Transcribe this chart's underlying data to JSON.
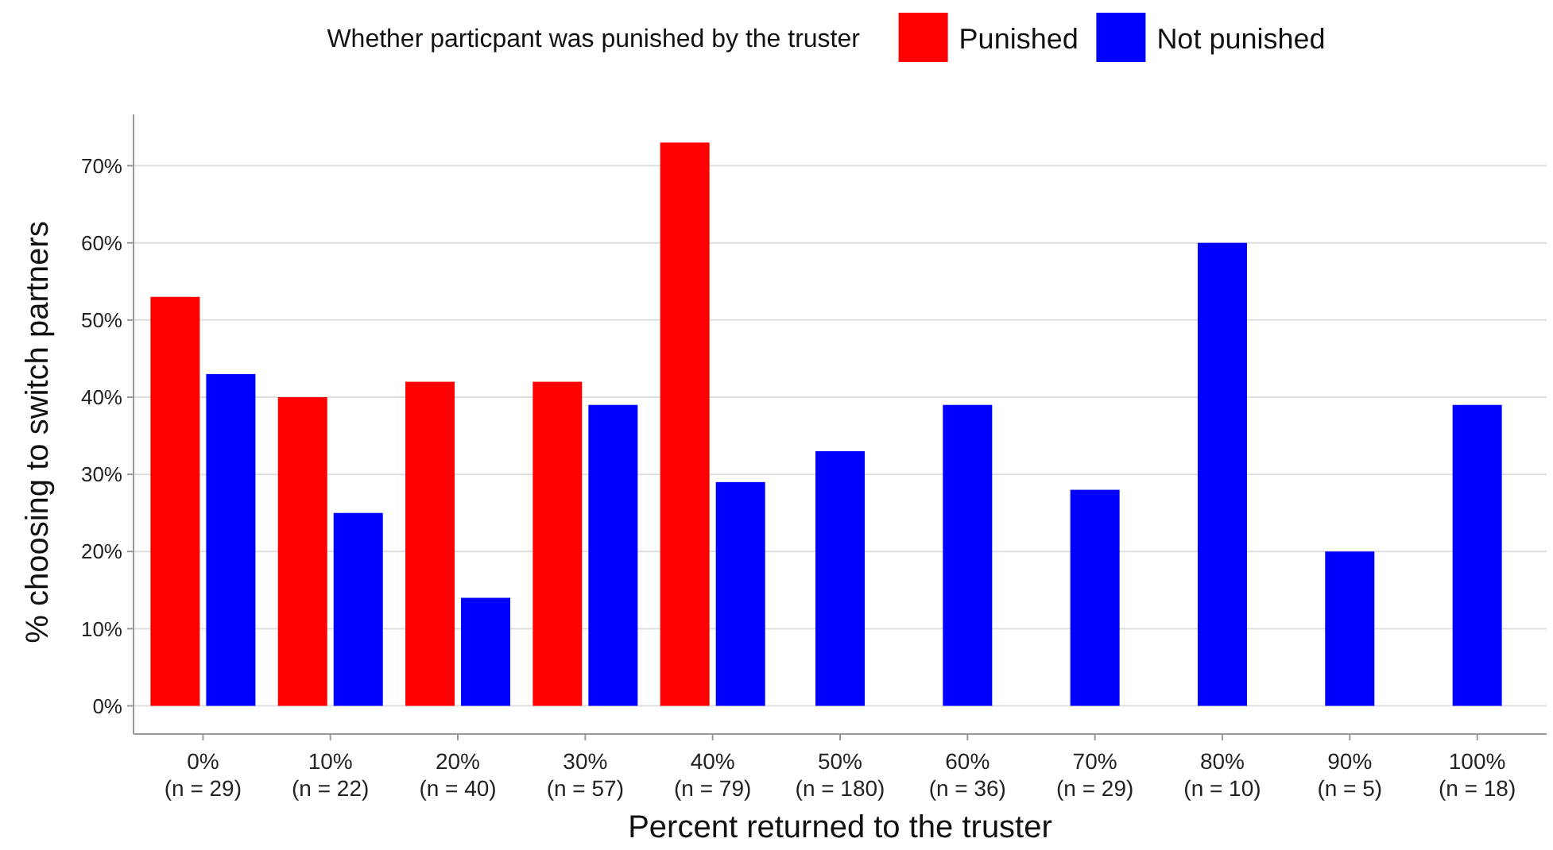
{
  "chart_data": {
    "type": "bar",
    "xlabel": "Percent returned to the truster",
    "ylabel": "% choosing to switch partners",
    "legend_title": "Whether particpant was punished by the truster",
    "legend": "top",
    "categories": [
      "0%\n(n = 29)",
      "10%\n(n = 22)",
      "20%\n(n = 40)",
      "30%\n(n = 57)",
      "40%\n(n = 79)",
      "50%\n(n = 180)",
      "60%\n(n = 36)",
      "70%\n(n = 29)",
      "80%\n(n = 10)",
      "90%\n(n = 5)",
      "100%\n(n = 18)"
    ],
    "series": [
      {
        "name": "Punished",
        "color": "#ff0000",
        "values": [
          53,
          40,
          42,
          42,
          73,
          null,
          null,
          null,
          null,
          null,
          null
        ]
      },
      {
        "name": "Not punished",
        "color": "#0000ff",
        "values": [
          43,
          25,
          14,
          39,
          29,
          33,
          39,
          28,
          60,
          20,
          39
        ]
      }
    ],
    "ylim": [
      -3.65,
      76.65
    ],
    "yticks": [
      {
        "value": 0,
        "label": "0%"
      },
      {
        "value": 10,
        "label": "10%"
      },
      {
        "value": 20,
        "label": "20%"
      },
      {
        "value": 30,
        "label": "30%"
      },
      {
        "value": 40,
        "label": "40%"
      },
      {
        "value": 50,
        "label": "50%"
      },
      {
        "value": 60,
        "label": "60%"
      },
      {
        "value": 70,
        "label": "70%"
      }
    ],
    "grid": "y"
  }
}
